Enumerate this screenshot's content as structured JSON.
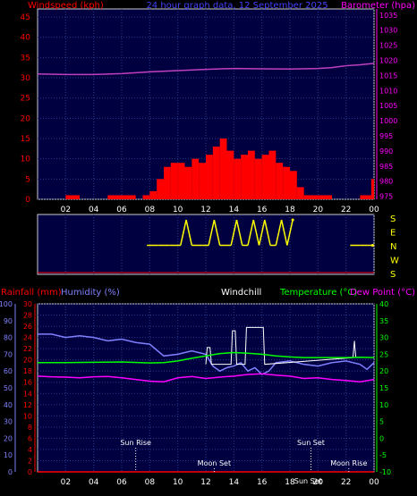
{
  "header": {
    "windspeed_label": "Windspeed (kph)",
    "title": "24 hour graph data, 12 September 2025",
    "barometer_label": "Barometer (hpa)"
  },
  "direction_labels": [
    "S",
    "E",
    "N",
    "W",
    "S"
  ],
  "lower_header": {
    "rainfall_label": "Rainfall (mm)",
    "humidity_label": "Humidity (%)",
    "windchill_label": "Windchill",
    "temperature_label": "Temperature (°C)",
    "dewpoint_label": "Dew Point (°C)"
  },
  "events": [
    {
      "label": "Sun Rise",
      "hour": 7.0,
      "row": "upper"
    },
    {
      "label": "Moon Set",
      "hour": 12.6,
      "row": "lower"
    },
    {
      "label": "Sun Set",
      "hour": 19.5,
      "row": "upper"
    },
    {
      "label": "Sun Set",
      "hour": 19.3,
      "row": "lower2"
    },
    {
      "label": "Moon Rise",
      "hour": 22.2,
      "row": "lower"
    }
  ],
  "colors": {
    "plot_bg": "#000040",
    "grid": "#2a3a8a",
    "windspeed": "#ff0000",
    "gust": "#ff0000",
    "barometer": "#c040c0",
    "direction": "#ffff00",
    "humidity": "#8080ff",
    "temperature": "#00ff00",
    "dewpoint": "#ff00ff",
    "windchill": "#ffffff",
    "rainfall": "#ff0000",
    "axis_left": "#ff0000",
    "axis_right_baro": "#ff00ff",
    "axis_humidity": "#8080ff",
    "axis_temp": "#00ff00",
    "title": "#4040ff"
  },
  "chart_data": [
    {
      "type": "line",
      "name": "wind-barometer",
      "x_ticks": [
        "02",
        "04",
        "06",
        "08",
        "10",
        "12",
        "14",
        "16",
        "18",
        "20",
        "22",
        "00"
      ],
      "y_left": {
        "label": "Windspeed (kph)",
        "ticks": [
          0,
          5,
          10,
          15,
          20,
          25,
          30,
          35,
          40,
          45
        ],
        "ylim": [
          0,
          47
        ]
      },
      "y_right": {
        "label": "Barometer (hpa)",
        "ticks": [
          975,
          980,
          985,
          990,
          995,
          1000,
          1005,
          1010,
          1015,
          1020,
          1025,
          1030,
          1035
        ],
        "ylim": [
          974,
          1037
        ]
      },
      "series": [
        {
          "name": "Windspeed (kph)",
          "x": [
            0,
            1,
            2,
            3,
            4,
            5,
            6,
            7,
            7.5,
            8,
            8.5,
            9,
            9.5,
            10,
            10.5,
            11,
            11.5,
            12,
            12.5,
            13,
            13.5,
            14,
            14.5,
            15,
            15.5,
            16,
            16.5,
            17,
            17.5,
            18,
            18.5,
            19,
            20,
            21,
            22,
            23,
            23.8,
            24
          ],
          "values": [
            0,
            0,
            1,
            0,
            0,
            1,
            1,
            0,
            1,
            2,
            5,
            8,
            9,
            9,
            8,
            10,
            9,
            11,
            13,
            15,
            12,
            10,
            11,
            12,
            10,
            11,
            12,
            9,
            8,
            7,
            3,
            1,
            1,
            0,
            0,
            1,
            5,
            10
          ]
        },
        {
          "name": "Barometer (hpa)",
          "x": [
            0,
            2,
            4,
            6,
            8,
            10,
            12,
            14,
            16,
            18,
            20,
            21,
            22,
            23,
            24
          ],
          "values": [
            1015.5,
            1015.3,
            1015.3,
            1015.6,
            1016.2,
            1016.6,
            1017.0,
            1017.3,
            1017.2,
            1017.1,
            1017.3,
            1017.6,
            1018.2,
            1018.5,
            1019.0
          ]
        }
      ]
    },
    {
      "type": "scatter",
      "name": "wind-direction",
      "x_ticks": [
        "02",
        "04",
        "06",
        "08",
        "10",
        "12",
        "14",
        "16",
        "18",
        "20",
        "22",
        "00"
      ],
      "y_labels": [
        "S",
        "E",
        "N",
        "W",
        "S"
      ],
      "series": [
        {
          "name": "Wind direction",
          "x": [
            7.8,
            8.2,
            8.6,
            9.0,
            9.4,
            9.8,
            10.2,
            10.6,
            11.0,
            11.4,
            11.8,
            12.2,
            12.6,
            13.0,
            13.4,
            13.8,
            14.2,
            14.6,
            15.0,
            15.4,
            15.8,
            16.2,
            16.6,
            17.0,
            17.4,
            17.8,
            18.2,
            22.3,
            23.0,
            23.5,
            23.9
          ],
          "values": [
            "N",
            "N",
            "N",
            "N",
            "N",
            "N",
            "N",
            "S",
            "N",
            "N",
            "N",
            "N",
            "S",
            "N",
            "N",
            "N",
            "S",
            "N",
            "N",
            "S",
            "N",
            "S",
            "N",
            "N",
            "S",
            "N",
            "S",
            "N",
            "N",
            "N",
            "N"
          ]
        }
      ]
    },
    {
      "type": "line",
      "name": "temperature-humidity",
      "x_ticks": [
        "02",
        "04",
        "06",
        "08",
        "10",
        "12",
        "14",
        "16",
        "18",
        "20",
        "22",
        "00"
      ],
      "y_humidity": {
        "label": "Humidity (%)",
        "ticks": [
          0,
          10,
          20,
          30,
          40,
          50,
          60,
          70,
          80,
          90,
          100
        ],
        "ylim": [
          0,
          100
        ]
      },
      "y_rain": {
        "label": "Rainfall (mm)",
        "ticks": [
          0,
          2,
          4,
          6,
          8,
          10,
          12,
          14,
          16,
          18,
          20,
          22,
          24,
          26,
          28,
          30
        ],
        "ylim": [
          0,
          30
        ]
      },
      "y_temp": {
        "label": "Temperature (°C)",
        "ticks": [
          -10,
          -5,
          0,
          5,
          10,
          15,
          20,
          25,
          30,
          35,
          40
        ],
        "ylim": [
          -10,
          40
        ]
      },
      "series": [
        {
          "name": "Humidity (%)",
          "x": [
            0,
            1,
            2,
            3,
            4,
            5,
            6,
            7,
            8,
            9,
            10,
            11,
            12,
            12.5,
            13,
            13.5,
            14,
            14.5,
            15,
            15.5,
            16,
            16.5,
            17,
            18,
            19,
            20,
            21,
            22,
            23,
            23.5,
            24
          ],
          "values": [
            82,
            82,
            80,
            81,
            80,
            78,
            79,
            77,
            76,
            69,
            70,
            72,
            70,
            63,
            60,
            62,
            63,
            65,
            60,
            62,
            58,
            60,
            65,
            66,
            64,
            63,
            65,
            66,
            64,
            61,
            65
          ]
        },
        {
          "name": "Temperature (°C)",
          "x": [
            0,
            2,
            4,
            6,
            8,
            9,
            10,
            11,
            12,
            13,
            14,
            15,
            16,
            17,
            18,
            19,
            20,
            21,
            22,
            23,
            24
          ],
          "values": [
            22.5,
            22.5,
            22.6,
            22.7,
            22.4,
            22.5,
            23.0,
            23.8,
            24.5,
            25.2,
            25.5,
            25.3,
            25.0,
            24.5,
            24.2,
            24.0,
            24.0,
            24.0,
            24.0,
            24.1,
            24.0
          ]
        },
        {
          "name": "Dew Point (°C)",
          "x": [
            0,
            1,
            2,
            3,
            4,
            5,
            6,
            7,
            8,
            9,
            10,
            11,
            12,
            13,
            14,
            15,
            16,
            17,
            18,
            19,
            20,
            21,
            22,
            23,
            24
          ],
          "values": [
            18.5,
            18.3,
            18.2,
            18.0,
            18.3,
            18.4,
            18.0,
            17.5,
            17.0,
            16.8,
            18.0,
            18.4,
            17.8,
            18.2,
            18.5,
            19.0,
            19.2,
            18.8,
            18.5,
            17.8,
            18.0,
            17.5,
            17.2,
            16.8,
            17.5
          ]
        },
        {
          "name": "Windchill",
          "x": [
            12.0,
            12.1,
            12.3,
            12.4,
            13.8,
            13.9,
            14.1,
            14.2,
            14.8,
            14.9,
            15.8,
            15.9,
            16.1,
            16.2,
            22.5,
            22.6,
            22.7
          ],
          "values": [
            22,
            27,
            27,
            22,
            22,
            32,
            32,
            22,
            22,
            33,
            33,
            33,
            33,
            22,
            24,
            29,
            24
          ]
        },
        {
          "name": "Rainfall (mm)",
          "x": [
            0,
            24
          ],
          "values": [
            0,
            0
          ]
        }
      ]
    }
  ]
}
